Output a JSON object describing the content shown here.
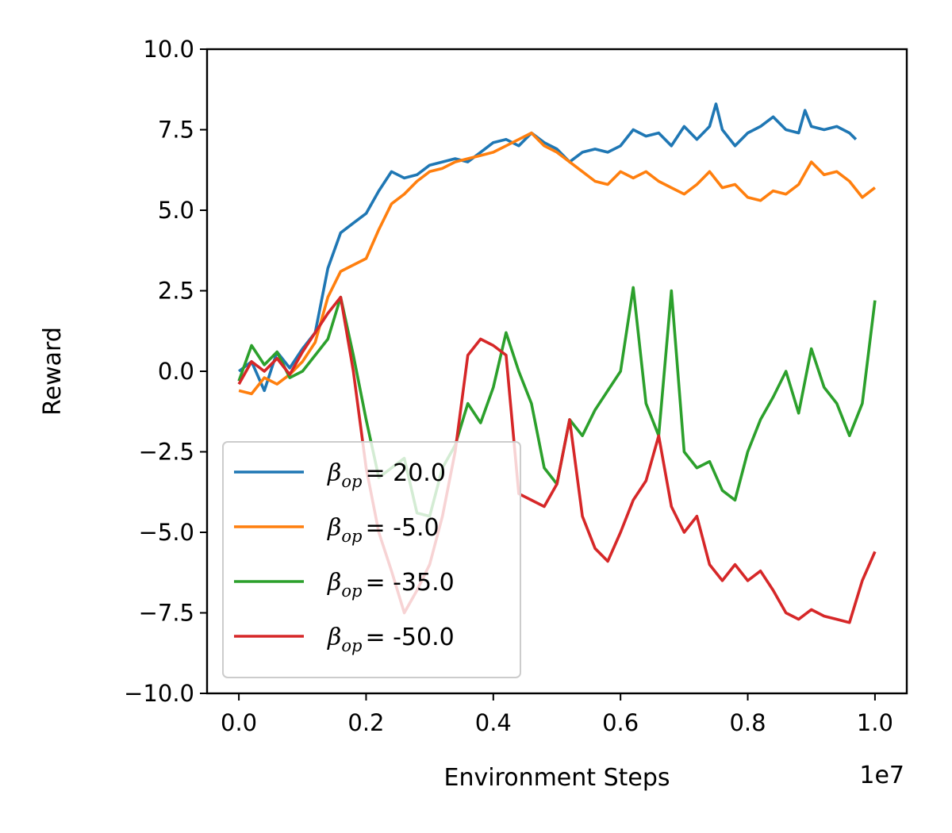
{
  "chart_data": {
    "type": "line",
    "title": "",
    "xlabel": "Environment Steps",
    "ylabel": "Reward",
    "x_offset_label": "1e7",
    "xlim": [
      -0.05,
      1.05
    ],
    "ylim": [
      -10.0,
      10.0
    ],
    "x_ticks": [
      0.0,
      0.2,
      0.4,
      0.6,
      0.8,
      1.0
    ],
    "x_tick_labels": [
      "0.0",
      "0.2",
      "0.4",
      "0.6",
      "0.8",
      "1.0"
    ],
    "y_ticks": [
      10.0,
      7.5,
      5.0,
      2.5,
      0.0,
      -2.5,
      -5.0,
      -7.5,
      -10.0
    ],
    "y_tick_labels": [
      "10.0",
      "7.5",
      "5.0",
      "2.5",
      "0.0",
      "−2.5",
      "−5.0",
      "−7.5",
      "−10.0"
    ],
    "grid": false,
    "legend_position": "lower-left",
    "series": [
      {
        "name": "βop = 20.0",
        "legend_symbol": "β",
        "legend_subscript": "op",
        "legend_value": "= 20.0",
        "color": "#1f77b4",
        "x": [
          0.0,
          0.02,
          0.04,
          0.06,
          0.08,
          0.1,
          0.12,
          0.14,
          0.16,
          0.18,
          0.2,
          0.22,
          0.24,
          0.26,
          0.28,
          0.3,
          0.32,
          0.34,
          0.36,
          0.38,
          0.4,
          0.42,
          0.44,
          0.46,
          0.48,
          0.5,
          0.52,
          0.54,
          0.56,
          0.58,
          0.6,
          0.62,
          0.64,
          0.66,
          0.68,
          0.7,
          0.72,
          0.74,
          0.75,
          0.76,
          0.78,
          0.8,
          0.82,
          0.84,
          0.86,
          0.88,
          0.89,
          0.9,
          0.92,
          0.94,
          0.96,
          0.97
        ],
        "y": [
          0.0,
          0.3,
          -0.6,
          0.6,
          0.1,
          0.7,
          1.2,
          3.2,
          4.3,
          4.6,
          4.9,
          5.6,
          6.2,
          6.0,
          6.1,
          6.4,
          6.5,
          6.6,
          6.5,
          6.8,
          7.1,
          7.2,
          7.0,
          7.4,
          7.1,
          6.9,
          6.5,
          6.8,
          6.9,
          6.8,
          7.0,
          7.5,
          7.3,
          7.4,
          7.0,
          7.6,
          7.2,
          7.6,
          8.3,
          7.5,
          7.0,
          7.4,
          7.6,
          7.9,
          7.5,
          7.4,
          8.1,
          7.6,
          7.5,
          7.6,
          7.4,
          7.2
        ]
      },
      {
        "name": "βop = -5.0",
        "legend_symbol": "β",
        "legend_subscript": "op",
        "legend_value": "= -5.0",
        "color": "#ff7f0e",
        "x": [
          0.0,
          0.02,
          0.04,
          0.06,
          0.08,
          0.1,
          0.12,
          0.14,
          0.16,
          0.18,
          0.2,
          0.22,
          0.24,
          0.26,
          0.28,
          0.3,
          0.32,
          0.34,
          0.36,
          0.38,
          0.4,
          0.42,
          0.44,
          0.46,
          0.48,
          0.5,
          0.52,
          0.54,
          0.56,
          0.58,
          0.6,
          0.62,
          0.64,
          0.66,
          0.68,
          0.7,
          0.72,
          0.74,
          0.76,
          0.78,
          0.8,
          0.82,
          0.84,
          0.86,
          0.88,
          0.9,
          0.92,
          0.94,
          0.96,
          0.98,
          1.0
        ],
        "y": [
          -0.6,
          -0.7,
          -0.2,
          -0.4,
          -0.1,
          0.3,
          0.9,
          2.3,
          3.1,
          3.3,
          3.5,
          4.4,
          5.2,
          5.5,
          5.9,
          6.2,
          6.3,
          6.5,
          6.6,
          6.7,
          6.8,
          7.0,
          7.2,
          7.4,
          7.0,
          6.8,
          6.5,
          6.2,
          5.9,
          5.8,
          6.2,
          6.0,
          6.2,
          5.9,
          5.7,
          5.5,
          5.8,
          6.2,
          5.7,
          5.8,
          5.4,
          5.3,
          5.6,
          5.5,
          5.8,
          6.5,
          6.1,
          6.2,
          5.9,
          5.4,
          5.7
        ]
      },
      {
        "name": "βop = -35.0",
        "legend_symbol": "β",
        "legend_subscript": "op",
        "legend_value": "= -35.0",
        "color": "#2ca02c",
        "x": [
          0.0,
          0.02,
          0.04,
          0.06,
          0.08,
          0.1,
          0.12,
          0.14,
          0.16,
          0.18,
          0.2,
          0.22,
          0.24,
          0.26,
          0.28,
          0.3,
          0.32,
          0.34,
          0.36,
          0.38,
          0.4,
          0.42,
          0.44,
          0.46,
          0.48,
          0.5,
          0.52,
          0.54,
          0.56,
          0.58,
          0.6,
          0.62,
          0.64,
          0.66,
          0.68,
          0.7,
          0.72,
          0.74,
          0.76,
          0.78,
          0.8,
          0.82,
          0.84,
          0.86,
          0.88,
          0.9,
          0.92,
          0.94,
          0.96,
          0.98,
          1.0
        ],
        "y": [
          -0.3,
          0.8,
          0.2,
          0.6,
          -0.2,
          0.0,
          0.5,
          1.0,
          2.3,
          0.5,
          -1.5,
          -3.3,
          -3.0,
          -2.7,
          -4.4,
          -4.5,
          -3.0,
          -2.3,
          -1.0,
          -1.6,
          -0.5,
          1.2,
          0.0,
          -1.0,
          -3.0,
          -3.5,
          -1.5,
          -2.0,
          -1.2,
          -0.6,
          0.0,
          2.6,
          -1.0,
          -2.0,
          2.5,
          -2.5,
          -3.0,
          -2.8,
          -3.7,
          -4.0,
          -2.5,
          -1.5,
          -0.8,
          0.0,
          -1.3,
          0.7,
          -0.5,
          -1.0,
          -2.0,
          -1.0,
          2.2
        ]
      },
      {
        "name": "βop = -50.0",
        "legend_symbol": "β",
        "legend_subscript": "op",
        "legend_value": "= -50.0",
        "color": "#d62728",
        "x": [
          0.0,
          0.02,
          0.04,
          0.06,
          0.08,
          0.1,
          0.12,
          0.14,
          0.16,
          0.18,
          0.2,
          0.22,
          0.24,
          0.26,
          0.28,
          0.3,
          0.32,
          0.34,
          0.36,
          0.38,
          0.4,
          0.42,
          0.44,
          0.46,
          0.48,
          0.5,
          0.52,
          0.54,
          0.56,
          0.58,
          0.6,
          0.62,
          0.64,
          0.66,
          0.68,
          0.7,
          0.72,
          0.74,
          0.76,
          0.78,
          0.8,
          0.82,
          0.84,
          0.86,
          0.88,
          0.9,
          0.92,
          0.94,
          0.96,
          0.98,
          1.0
        ],
        "y": [
          -0.4,
          0.3,
          0.0,
          0.4,
          -0.1,
          0.6,
          1.2,
          1.8,
          2.3,
          0.0,
          -3.0,
          -5.0,
          -6.2,
          -7.5,
          -6.8,
          -6.0,
          -4.5,
          -2.5,
          0.5,
          1.0,
          0.8,
          0.5,
          -3.8,
          -4.0,
          -4.2,
          -3.5,
          -1.5,
          -4.5,
          -5.5,
          -5.9,
          -5.0,
          -4.0,
          -3.4,
          -2.0,
          -4.2,
          -5.0,
          -4.5,
          -6.0,
          -6.5,
          -6.0,
          -6.5,
          -6.2,
          -6.8,
          -7.5,
          -7.7,
          -7.4,
          -7.6,
          -7.7,
          -7.8,
          -6.5,
          -5.6
        ]
      }
    ]
  }
}
